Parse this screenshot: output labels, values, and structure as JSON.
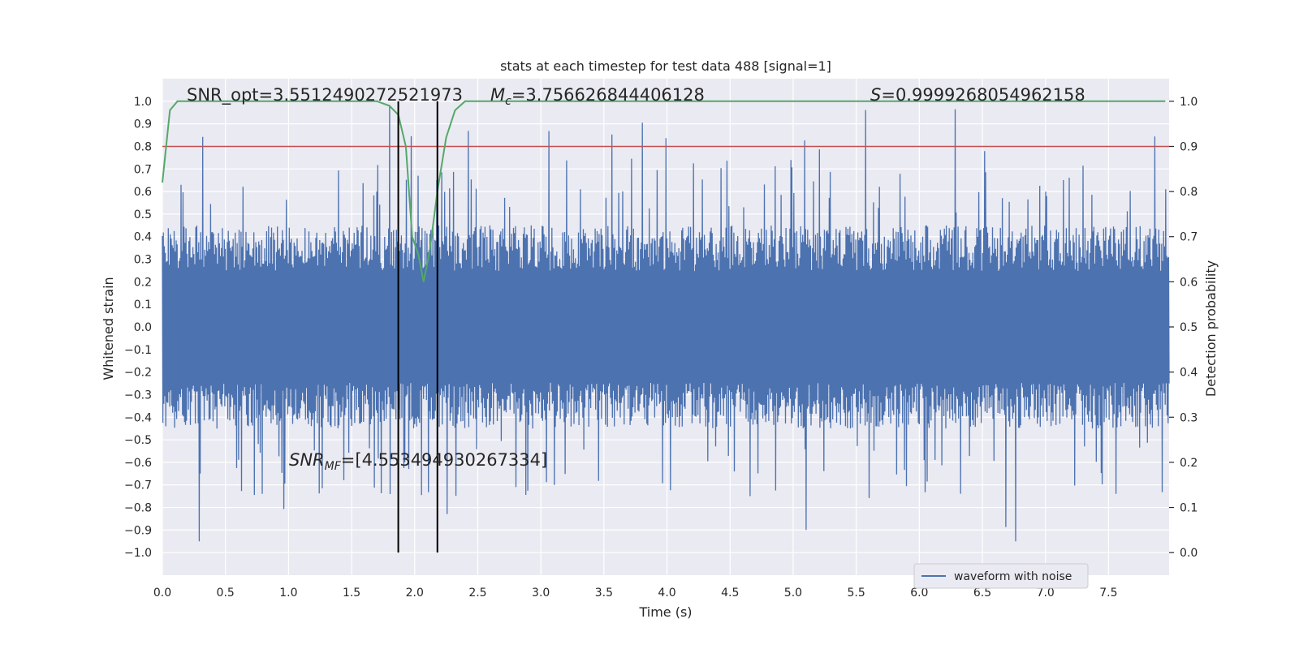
{
  "chart_data": {
    "type": "line",
    "title": "stats at each timestep for test data 488 [signal=1]",
    "xlabel": "Time (s)",
    "ylabel": "Whitened strain",
    "ylabel_right": "Detection probability",
    "xlim": [
      0.0,
      7.98
    ],
    "ylim": [
      -1.1,
      1.1
    ],
    "ylim_right": [
      -0.05,
      1.05
    ],
    "xticks": [
      0.0,
      0.5,
      1.0,
      1.5,
      2.0,
      2.5,
      3.0,
      3.5,
      4.0,
      4.5,
      5.0,
      5.5,
      6.0,
      6.5,
      7.0,
      7.5
    ],
    "xtick_labels": [
      "0.0",
      "0.5",
      "1.0",
      "1.5",
      "2.0",
      "2.5",
      "3.0",
      "3.5",
      "4.0",
      "4.5",
      "5.0",
      "5.5",
      "6.0",
      "6.5",
      "7.0",
      "7.5"
    ],
    "yticks": [
      1.0,
      0.9,
      0.8,
      0.7,
      0.6,
      0.5,
      0.4,
      0.3,
      0.2,
      0.1,
      0.0,
      -0.1,
      -0.2,
      -0.3,
      -0.4,
      -0.5,
      -0.6,
      -0.7,
      -0.8,
      -0.9,
      -1.0
    ],
    "ytick_labels": [
      "1.0",
      "0.9",
      "0.8",
      "0.7",
      "0.6",
      "0.5",
      "0.4",
      "0.3",
      "0.2",
      "0.1",
      "0.0",
      "−0.1",
      "−0.2",
      "−0.3",
      "−0.4",
      "−0.5",
      "−0.6",
      "−0.7",
      "−0.8",
      "−0.9",
      "−1.0"
    ],
    "yticks_right": [
      1.0,
      0.9,
      0.8,
      0.7,
      0.6,
      0.5,
      0.4,
      0.3,
      0.2,
      0.1,
      0.0
    ],
    "ytick_labels_right": [
      "1.0",
      "0.9",
      "0.8",
      "0.7",
      "0.6",
      "0.5",
      "0.4",
      "0.3",
      "0.2",
      "0.1",
      "0.0"
    ],
    "annotations": {
      "snr_opt": "SNR_opt=3.5512490272521973",
      "mc_symbol": "M",
      "mc_sub": "c",
      "mc_value": "=3.756626844406128",
      "s_symbol": "S",
      "s_value": "=0.9999268054962158",
      "snr_mf_symbol": "SNR",
      "snr_mf_sub": "MF",
      "snr_mf_value": "=[4.553494930267334]"
    },
    "legend": {
      "label": "waveform with noise",
      "placement": "lower-right"
    },
    "colors": {
      "waveform": "#4c72b0",
      "probability": "#55a868",
      "threshold": "#c44e52",
      "marker": "#000000",
      "background": "#eaeaf2",
      "grid": "#ffffff"
    },
    "threshold_probability": 0.9,
    "marker_times": [
      1.87,
      2.18
    ],
    "waveform": {
      "name": "waveform with noise",
      "sample_count": 2048,
      "envelope_typical": 0.45,
      "spike_max": 1.0,
      "spike_min": -0.95
    },
    "probability_series": {
      "name": "detection probability",
      "x": [
        0.0,
        0.06,
        0.12,
        1.6,
        1.7,
        1.8,
        1.87,
        1.93,
        1.98,
        2.03,
        2.07,
        2.12,
        2.18,
        2.25,
        2.32,
        2.4,
        2.5,
        7.95
      ],
      "values": [
        0.82,
        0.98,
        1.0,
        1.0,
        1.0,
        0.99,
        0.97,
        0.9,
        0.7,
        0.66,
        0.6,
        0.67,
        0.8,
        0.92,
        0.98,
        1.0,
        1.0,
        1.0
      ]
    }
  }
}
